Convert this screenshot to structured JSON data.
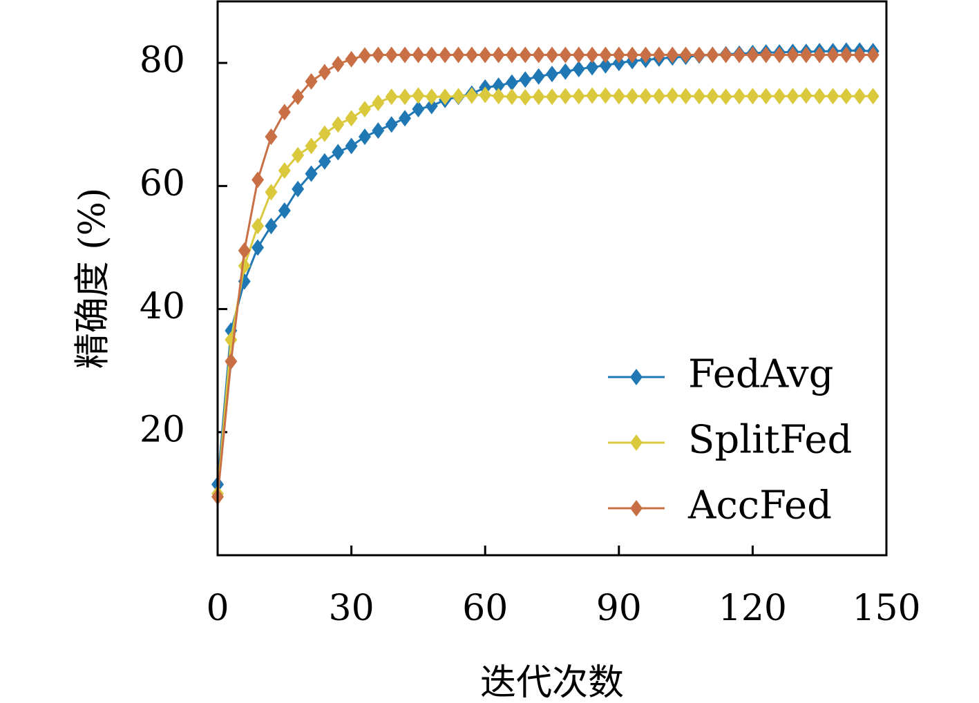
{
  "chart_data": {
    "type": "line",
    "xlabel": "迭代次数",
    "ylabel": "精确度 (%)",
    "xlim": [
      0,
      150
    ],
    "ylim": [
      0,
      90
    ],
    "xticks": [
      0,
      30,
      60,
      90,
      120,
      150
    ],
    "yticks": [
      20,
      40,
      60,
      80
    ],
    "grid": false,
    "legend_position": "bottom-right",
    "x": [
      0,
      3,
      6,
      9,
      12,
      15,
      18,
      21,
      24,
      27,
      30,
      33,
      36,
      39,
      42,
      45,
      48,
      51,
      54,
      57,
      60,
      63,
      66,
      69,
      72,
      75,
      78,
      81,
      84,
      87,
      90,
      93,
      96,
      99,
      102,
      105,
      108,
      111,
      114,
      117,
      120,
      123,
      126,
      129,
      132,
      135,
      138,
      141,
      144,
      147
    ],
    "series": [
      {
        "name": "FedAvg",
        "color": "#1f77b4",
        "values": [
          11.5,
          36.5,
          44.5,
          50,
          53.5,
          56,
          59.5,
          62,
          64,
          65.5,
          66.5,
          68,
          69,
          70,
          71,
          72.5,
          73,
          74,
          74.5,
          75,
          76,
          76.3,
          76.8,
          77.3,
          77.8,
          78.2,
          78.6,
          79,
          79.3,
          79.6,
          80,
          80.3,
          80.5,
          80.7,
          80.9,
          81,
          81.2,
          81.3,
          81.4,
          81.5,
          81.6,
          81.7,
          81.7,
          81.8,
          81.8,
          81.9,
          81.9,
          82,
          82,
          81.9
        ]
      },
      {
        "name": "SplitFed",
        "color": "#dbc93d",
        "values": [
          10,
          35,
          47,
          53.5,
          59,
          62.5,
          65,
          66.5,
          68.5,
          70,
          71,
          72.5,
          73.5,
          74.5,
          74.5,
          74.7,
          74.5,
          74.5,
          74.6,
          74.7,
          74.8,
          74.6,
          74.5,
          74.4,
          74.5,
          74.5,
          74.6,
          74.6,
          74.7,
          74.7,
          74.6,
          74.6,
          74.6,
          74.6,
          74.7,
          74.6,
          74.6,
          74.6,
          74.5,
          74.6,
          74.6,
          74.6,
          74.6,
          74.6,
          74.7,
          74.6,
          74.6,
          74.6,
          74.6,
          74.6
        ]
      },
      {
        "name": "AccFed",
        "color": "#c86f45",
        "values": [
          9.5,
          31.5,
          49.5,
          61,
          68,
          72,
          74.5,
          77,
          78.5,
          79.8,
          80.6,
          81.2,
          81.3,
          81.3,
          81.3,
          81.3,
          81.3,
          81.3,
          81.3,
          81.3,
          81.3,
          81.3,
          81.3,
          81.3,
          81.3,
          81.3,
          81.3,
          81.3,
          81.3,
          81.3,
          81.3,
          81.3,
          81.3,
          81.3,
          81.3,
          81.3,
          81.3,
          81.3,
          81.3,
          81.3,
          81.3,
          81.3,
          81.3,
          81.3,
          81.3,
          81.3,
          81.3,
          81.3,
          81.3,
          81.3
        ]
      }
    ]
  }
}
